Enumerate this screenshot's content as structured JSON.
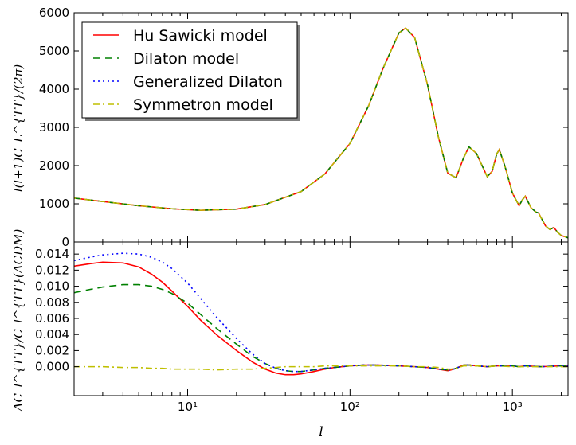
{
  "chart_data": [
    {
      "type": "line",
      "panel": "top",
      "title": "",
      "xlabel": "",
      "ylabel": "l(l+1)C_L^{TT}/(2π)",
      "xscale": "log",
      "xlim": [
        2,
        2200
      ],
      "ylim": [
        0,
        6000
      ],
      "yticks": [
        0,
        1000,
        2000,
        3000,
        4000,
        5000,
        6000
      ],
      "ytick_labels": [
        "0",
        "1000",
        "2000",
        "3000",
        "4000",
        "5000",
        "6000"
      ],
      "grid": false,
      "legend": {
        "position": "top-left",
        "entries": [
          {
            "label": "Hu Sawicki model",
            "color": "#ff0000",
            "style": "solid"
          },
          {
            "label": "Dilaton model",
            "color": "#008000",
            "style": "dashed"
          },
          {
            "label": "Generalized Dilaton",
            "color": "#0000ff",
            "style": "dotted"
          },
          {
            "label": "Symmetron model",
            "color": "#bfbf00",
            "style": "dashdot"
          }
        ]
      },
      "x": [
        2,
        3,
        5,
        8,
        12,
        20,
        30,
        50,
        70,
        100,
        130,
        160,
        200,
        220,
        250,
        300,
        350,
        400,
        450,
        500,
        540,
        600,
        700,
        750,
        800,
        830,
        900,
        1000,
        1100,
        1150,
        1200,
        1300,
        1400,
        1450,
        1500,
        1600,
        1700,
        1800,
        1900,
        2000,
        2100,
        2200
      ],
      "series": [
        {
          "name": "Hu Sawicki model",
          "color": "#ff0000",
          "style": "solid",
          "values": [
            1150,
            1060,
            950,
            870,
            830,
            860,
            980,
            1320,
            1780,
            2580,
            3560,
            4550,
            5470,
            5600,
            5350,
            4120,
            2750,
            1800,
            1680,
            2200,
            2490,
            2320,
            1710,
            1850,
            2300,
            2420,
            1980,
            1280,
            950,
            1100,
            1200,
            900,
            780,
            760,
            640,
            420,
            330,
            380,
            250,
            170,
            140,
            110
          ]
        }
      ]
    },
    {
      "type": "line",
      "panel": "bottom",
      "title": "",
      "xlabel": "l",
      "ylabel": "ΔC_l^{TT}/C_l^{TT}(ΛCDM)",
      "xscale": "log",
      "xlim": [
        2,
        2200
      ],
      "xticks": [
        10,
        100,
        1000
      ],
      "xtick_labels": [
        "10¹",
        "10²",
        "10³"
      ],
      "ylim": [
        -0.0036,
        0.0155
      ],
      "yticks": [
        0.0,
        0.002,
        0.004,
        0.006,
        0.008,
        0.01,
        0.012,
        0.014
      ],
      "ytick_labels": [
        "0.000",
        "0.002",
        "0.004",
        "0.006",
        "0.008",
        "0.010",
        "0.012",
        "0.014"
      ],
      "grid": false,
      "x": [
        2,
        2.5,
        3,
        4,
        5,
        6,
        7,
        8,
        10,
        12,
        15,
        20,
        25,
        30,
        35,
        40,
        45,
        50,
        60,
        70,
        80,
        100,
        120,
        150,
        200,
        250,
        300,
        350,
        400,
        420,
        450,
        500,
        550,
        600,
        700,
        800,
        1000,
        1100,
        1200,
        1500,
        2000,
        2200
      ],
      "series": [
        {
          "name": "Hu Sawicki model",
          "color": "#ff0000",
          "style": "solid",
          "values": [
            0.0125,
            0.0128,
            0.013,
            0.0129,
            0.0124,
            0.0115,
            0.0105,
            0.0094,
            0.0075,
            0.0058,
            0.004,
            0.002,
            0.0006,
            -0.0003,
            -0.0008,
            -0.001,
            -0.001,
            -0.0009,
            -0.0006,
            -0.0003,
            -0.0001,
            0.0001,
            0.0002,
            0.0002,
            0.0001,
            0.0,
            -0.0001,
            -0.0003,
            -0.0005,
            -0.0004,
            -0.0002,
            0.0002,
            0.0002,
            0.0001,
            0.0,
            0.0001,
            0.0001,
            0.0,
            0.0001,
            0.0,
            0.0001,
            0.0001
          ]
        },
        {
          "name": "Dilaton model",
          "color": "#008000",
          "style": "dashed",
          "values": [
            0.0092,
            0.0096,
            0.0099,
            0.0102,
            0.0102,
            0.01,
            0.0096,
            0.0091,
            0.0079,
            0.0065,
            0.0048,
            0.0028,
            0.0013,
            0.0004,
            -0.0002,
            -0.0005,
            -0.0006,
            -0.0006,
            -0.0004,
            -0.0002,
            -0.0001,
            0.0001,
            0.0002,
            0.0002,
            0.0001,
            0.0,
            -0.0001,
            -0.0003,
            -0.0004,
            -0.0004,
            -0.0002,
            0.0002,
            0.0002,
            0.0001,
            0.0,
            0.0001,
            0.0001,
            0.0,
            0.0001,
            0.0,
            0.0001,
            0.0001
          ]
        },
        {
          "name": "Generalized Dilaton",
          "color": "#0000ff",
          "style": "dotted",
          "values": [
            0.0132,
            0.0136,
            0.0139,
            0.0141,
            0.014,
            0.0136,
            0.013,
            0.0122,
            0.0104,
            0.0085,
            0.0062,
            0.0035,
            0.0016,
            0.0004,
            -0.0002,
            -0.0005,
            -0.0006,
            -0.0006,
            -0.0004,
            -0.0002,
            -0.0001,
            0.0001,
            0.0002,
            0.0002,
            0.0001,
            0.0,
            -0.0001,
            -0.0003,
            -0.0004,
            -0.0004,
            -0.0002,
            0.0002,
            0.0002,
            0.0001,
            0.0,
            0.0001,
            0.0001,
            0.0,
            0.0001,
            0.0,
            0.0001,
            0.0001
          ]
        },
        {
          "name": "Symmetron model",
          "color": "#bfbf00",
          "style": "dashdot",
          "values": [
            0.0,
            0.0,
            0.0,
            -0.0001,
            -0.0001,
            -0.0002,
            -0.0002,
            -0.0003,
            -0.0003,
            -0.0003,
            -0.0004,
            -0.0003,
            -0.0003,
            -0.0002,
            -0.0001,
            0.0,
            0.0,
            0.0,
            0.0,
            0.0001,
            0.0001,
            0.0001,
            0.0001,
            0.0001,
            0.0001,
            0.0,
            0.0,
            -0.0001,
            -0.0003,
            -0.0003,
            -0.0002,
            0.0001,
            0.0001,
            0.0001,
            0.0,
            0.0001,
            0.0,
            0.0,
            0.0,
            0.0,
            0.0,
            0.0
          ]
        }
      ]
    }
  ]
}
